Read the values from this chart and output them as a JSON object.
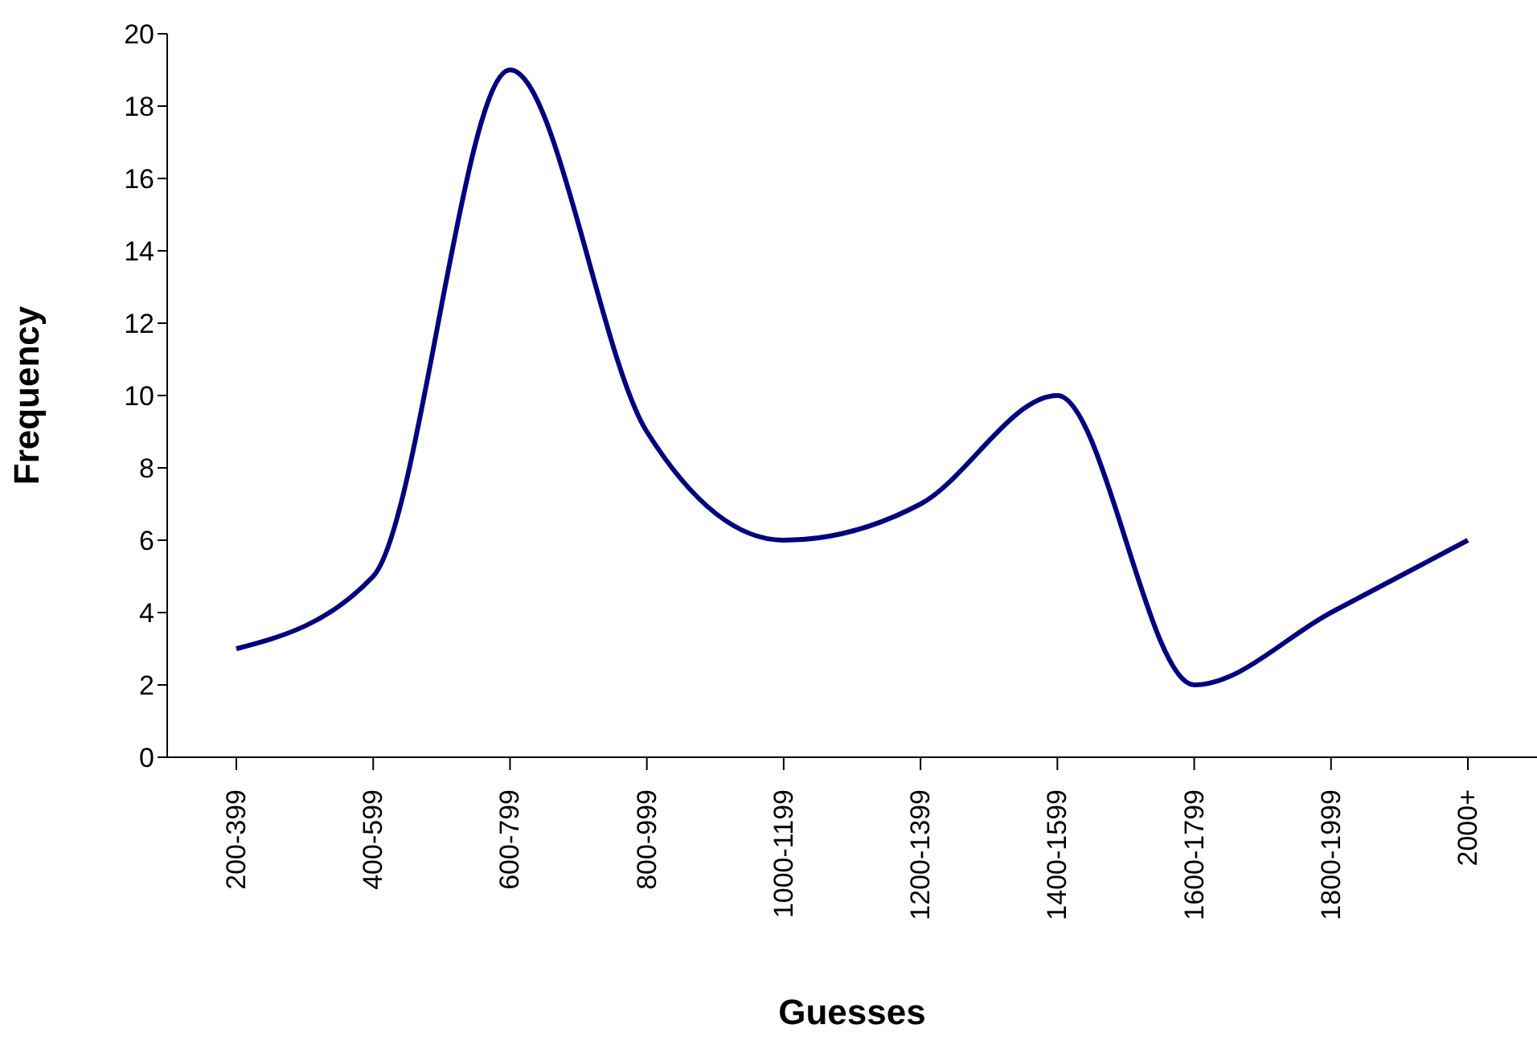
{
  "chart_data": {
    "type": "line",
    "xlabel": "Guesses",
    "ylabel": "Frequency",
    "categories": [
      "200-399",
      "400-599",
      "600-799",
      "800-999",
      "1000-1199",
      "1200-1399",
      "1400-1599",
      "1600-1799",
      "1800-1999",
      "2000+"
    ],
    "series": [
      {
        "color": "#000080",
        "values": [
          3,
          5,
          19,
          9,
          6,
          7,
          10,
          2,
          4,
          6
        ]
      }
    ],
    "ylim": [
      0,
      20
    ],
    "yticks": [
      0,
      2,
      4,
      6,
      8,
      10,
      12,
      14,
      16,
      18,
      20
    ],
    "grid": false,
    "legend": false,
    "marker": "none",
    "line_style": "solid"
  }
}
